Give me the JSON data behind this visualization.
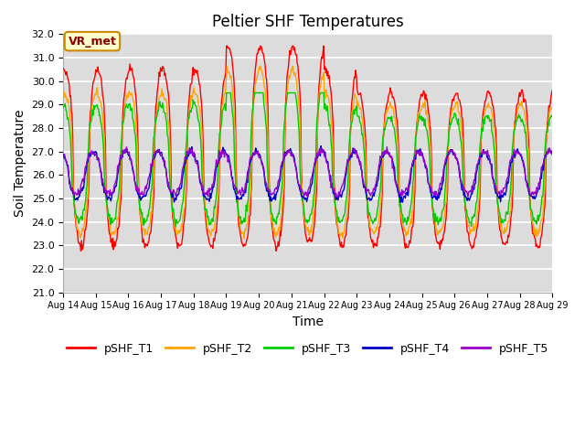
{
  "title": "Peltier SHF Temperatures",
  "xlabel": "Time",
  "ylabel": "Soil Temperature",
  "ylim": [
    21.0,
    32.0
  ],
  "yticks": [
    21.0,
    22.0,
    23.0,
    24.0,
    25.0,
    26.0,
    27.0,
    28.0,
    29.0,
    30.0,
    31.0,
    32.0
  ],
  "n_days": 15,
  "pts_per_day": 48,
  "series_colors": [
    "#ff0000",
    "#ffa500",
    "#00cc00",
    "#0000cc",
    "#9900cc"
  ],
  "series_labels": [
    "pSHF_T1",
    "pSHF_T2",
    "pSHF_T3",
    "pSHF_T4",
    "pSHF_T5"
  ],
  "legend_label": "VR_met",
  "legend_bg": "#ffffcc",
  "legend_border": "#cc8800",
  "plot_bg": "#dcdcdc",
  "grid_color": "#ffffff",
  "title_fontsize": 12,
  "axis_label_fontsize": 10,
  "tick_fontsize": 8,
  "line_width": 1.0,
  "xtick_start_day": 14,
  "xtick_end_day": 29
}
